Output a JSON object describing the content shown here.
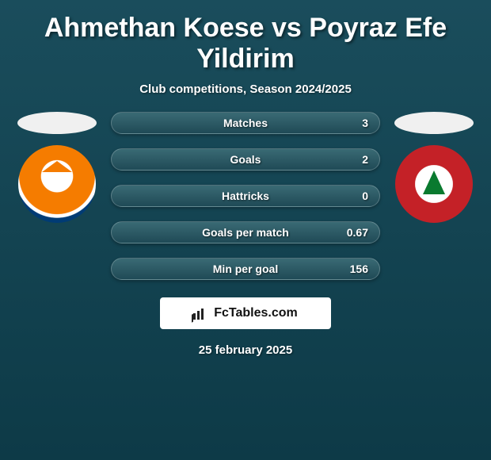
{
  "title": "Ahmethan Koese vs Poyraz Efe Yildirim",
  "subtitle": "Club competitions, Season 2024/2025",
  "stats": [
    {
      "label": "Matches",
      "value": "3"
    },
    {
      "label": "Goals",
      "value": "2"
    },
    {
      "label": "Hattricks",
      "value": "0"
    },
    {
      "label": "Goals per match",
      "value": "0.67"
    },
    {
      "label": "Min per goal",
      "value": "156"
    }
  ],
  "brand": "FcTables.com",
  "date": "25 february 2025",
  "colors": {
    "bg_top": "#1a4d5c",
    "bg_bottom": "#0d3a47",
    "pill_top": "#3a6a74",
    "pill_bottom": "#1f4a56",
    "left_badge_primary": "#f57c00",
    "left_badge_secondary": "#003b75",
    "right_badge_primary": "#c42127",
    "right_badge_tree": "#0a7a2f"
  }
}
